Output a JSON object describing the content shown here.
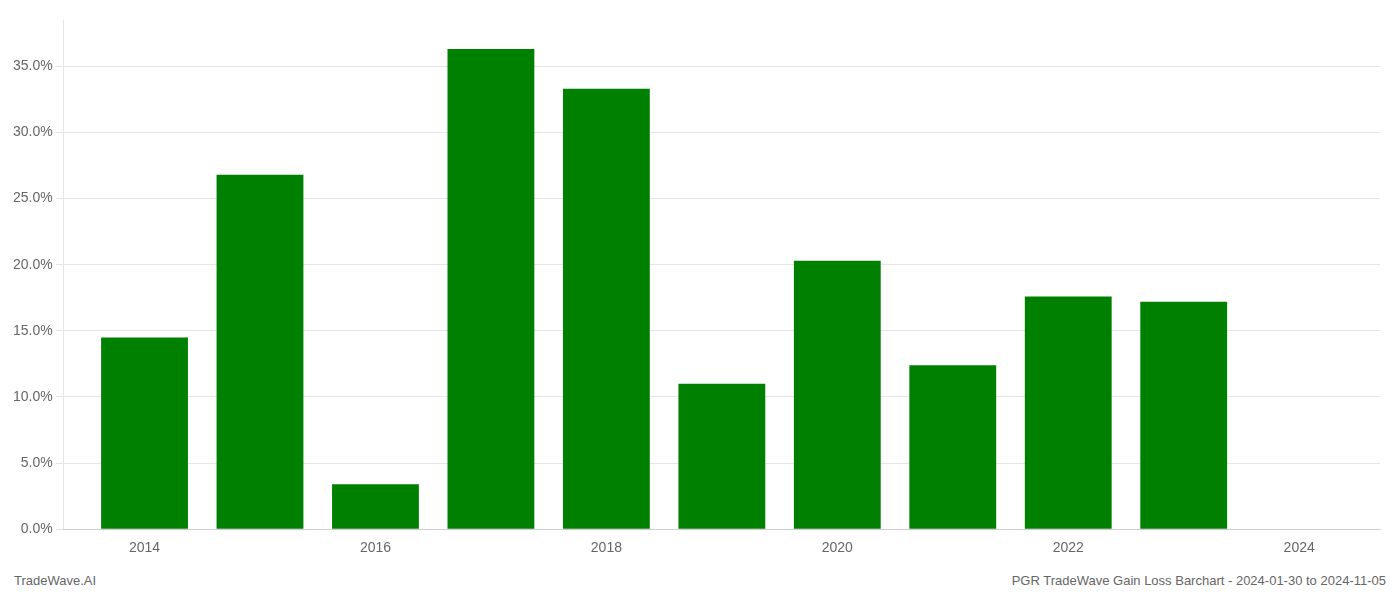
{
  "chart_data": {
    "type": "bar",
    "x": [
      2014,
      2015,
      2016,
      2017,
      2018,
      2019,
      2020,
      2021,
      2022,
      2023
    ],
    "values": [
      0.145,
      0.268,
      0.034,
      0.363,
      0.333,
      0.11,
      0.203,
      0.124,
      0.176,
      0.172
    ],
    "color": "#008000",
    "xlim": [
      2013.3,
      2024.7
    ],
    "xticks": [
      2014,
      2016,
      2018,
      2020,
      2022,
      2024
    ],
    "ylim": [
      0,
      0.385
    ],
    "yticks": [
      {
        "value": 0.0,
        "label": "0.0%"
      },
      {
        "value": 0.05,
        "label": "5.0%"
      },
      {
        "value": 0.1,
        "label": "10.0%"
      },
      {
        "value": 0.15,
        "label": "15.0%"
      },
      {
        "value": 0.2,
        "label": "20.0%"
      },
      {
        "value": 0.25,
        "label": "25.0%"
      },
      {
        "value": 0.3,
        "label": "30.0%"
      },
      {
        "value": 0.35,
        "label": "35.0%"
      }
    ],
    "grid": true,
    "annotations": [
      "TradeWave.AI",
      "PGR TradeWave Gain Loss Barchart - 2024-01-30 to 2024-11-05"
    ]
  }
}
